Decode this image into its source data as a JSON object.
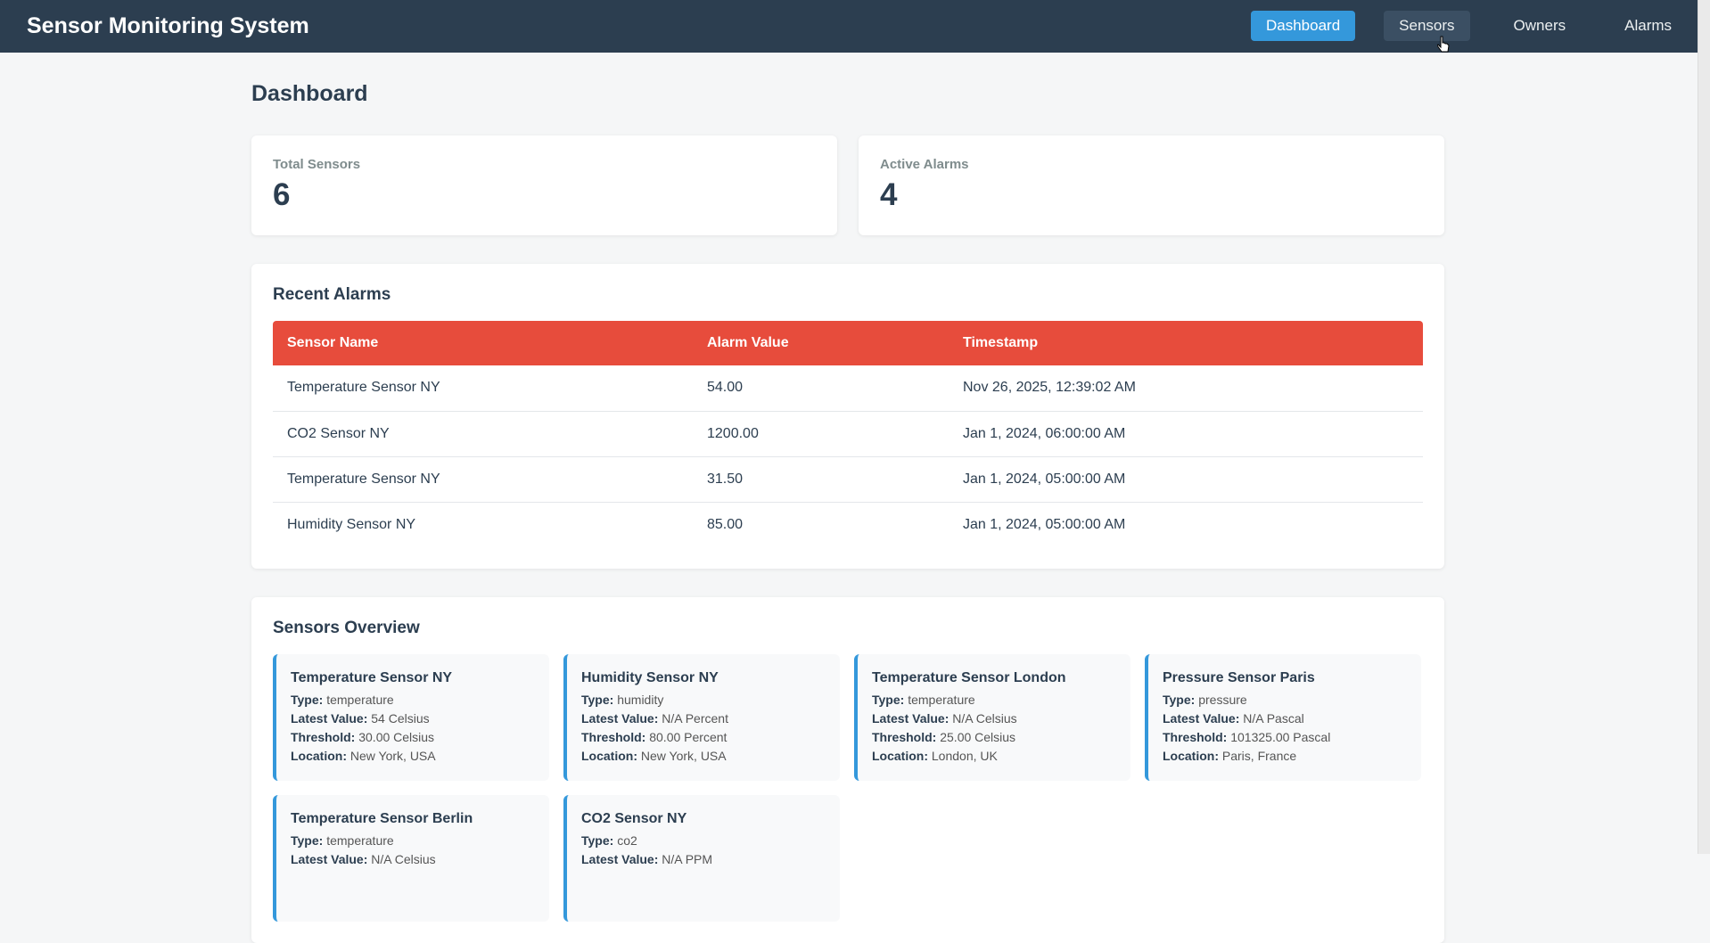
{
  "app": {
    "title": "Sensor Monitoring System"
  },
  "nav": {
    "items": [
      {
        "label": "Dashboard",
        "state": "active"
      },
      {
        "label": "Sensors",
        "state": "hover"
      },
      {
        "label": "Owners",
        "state": "normal"
      },
      {
        "label": "Alarms",
        "state": "normal"
      }
    ]
  },
  "page": {
    "title": "Dashboard"
  },
  "stats": {
    "total_sensors": {
      "label": "Total Sensors",
      "value": "6"
    },
    "active_alarms": {
      "label": "Active Alarms",
      "value": "4"
    }
  },
  "recent_alarms": {
    "title": "Recent Alarms",
    "columns": [
      "Sensor Name",
      "Alarm Value",
      "Timestamp"
    ],
    "rows": [
      [
        "Temperature Sensor NY",
        "54.00",
        "Nov 26, 2025, 12:39:02 AM"
      ],
      [
        "CO2 Sensor NY",
        "1200.00",
        "Jan 1, 2024, 06:00:00 AM"
      ],
      [
        "Temperature Sensor NY",
        "31.50",
        "Jan 1, 2024, 05:00:00 AM"
      ],
      [
        "Humidity Sensor NY",
        "85.00",
        "Jan 1, 2024, 05:00:00 AM"
      ]
    ]
  },
  "sensors_overview": {
    "title": "Sensors Overview",
    "labels": {
      "type": "Type:",
      "latest": "Latest Value:",
      "threshold": "Threshold:",
      "location": "Location:"
    },
    "sensors": [
      {
        "name": "Temperature Sensor NY",
        "type": "temperature",
        "latest": "54 Celsius",
        "threshold": "30.00 Celsius",
        "location": "New York, USA"
      },
      {
        "name": "Humidity Sensor NY",
        "type": "humidity",
        "latest": "N/A Percent",
        "threshold": "80.00 Percent",
        "location": "New York, USA"
      },
      {
        "name": "Temperature Sensor London",
        "type": "temperature",
        "latest": "N/A Celsius",
        "threshold": "25.00 Celsius",
        "location": "London, UK"
      },
      {
        "name": "Pressure Sensor Paris",
        "type": "pressure",
        "latest": "N/A Pascal",
        "threshold": "101325.00 Pascal",
        "location": "Paris, France"
      },
      {
        "name": "Temperature Sensor Berlin",
        "type": "temperature",
        "latest": "N/A Celsius",
        "threshold": "",
        "location": ""
      },
      {
        "name": "CO2 Sensor NY",
        "type": "co2",
        "latest": "N/A PPM",
        "threshold": "",
        "location": ""
      }
    ]
  },
  "colors": {
    "navbar": "#2c3e50",
    "accent": "#3498db",
    "alarm_header": "#e74c3c"
  }
}
